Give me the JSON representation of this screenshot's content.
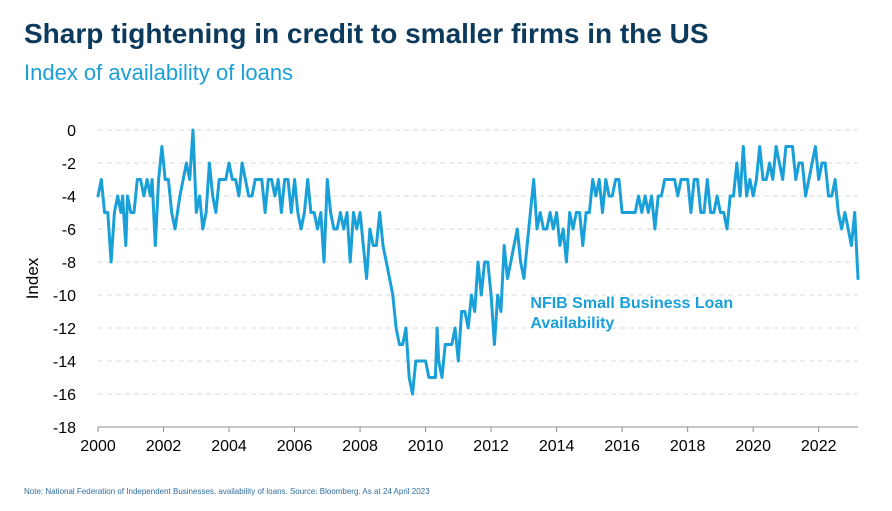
{
  "title": "Sharp tightening in credit to smaller firms in the US",
  "subtitle": "Index of availability of loans",
  "note": "Note: National Federation of Independent Businesses, availability of loans. Source: Bloomberg. As at 24 April 2023",
  "colors": {
    "title": "#0b3a5c",
    "accent": "#1aa0d8",
    "grid": "#d9d9d9"
  },
  "chart_data": {
    "type": "line",
    "ylabel": "Index",
    "ylim": [
      -18,
      0
    ],
    "yticks": [
      0,
      -2,
      -4,
      -6,
      -8,
      -10,
      -12,
      -14,
      -16,
      -18
    ],
    "xlim": [
      2000,
      2023.2
    ],
    "xticks": [
      2000,
      2002,
      2004,
      2006,
      2008,
      2010,
      2012,
      2014,
      2016,
      2018,
      2020,
      2022
    ],
    "grid": "horizontal dashed",
    "series": [
      {
        "name": "NFIB Small Business Loan Availability",
        "color": "#1aa0d8",
        "points": [
          [
            2000.0,
            -4
          ],
          [
            2000.1,
            -3
          ],
          [
            2000.2,
            -5
          ],
          [
            2000.3,
            -5
          ],
          [
            2000.4,
            -8
          ],
          [
            2000.5,
            -5
          ],
          [
            2000.6,
            -4
          ],
          [
            2000.7,
            -5
          ],
          [
            2000.75,
            -4
          ],
          [
            2000.85,
            -7
          ],
          [
            2000.9,
            -4
          ],
          [
            2001.0,
            -5
          ],
          [
            2001.1,
            -5
          ],
          [
            2001.2,
            -3
          ],
          [
            2001.3,
            -3
          ],
          [
            2001.4,
            -4
          ],
          [
            2001.5,
            -3
          ],
          [
            2001.6,
            -4
          ],
          [
            2001.65,
            -3
          ],
          [
            2001.75,
            -7
          ],
          [
            2001.85,
            -3
          ],
          [
            2001.95,
            -1
          ],
          [
            2002.05,
            -3
          ],
          [
            2002.15,
            -3
          ],
          [
            2002.25,
            -5
          ],
          [
            2002.35,
            -6
          ],
          [
            2002.5,
            -4
          ],
          [
            2002.7,
            -2
          ],
          [
            2002.8,
            -3
          ],
          [
            2002.9,
            0
          ],
          [
            2003.0,
            -5
          ],
          [
            2003.1,
            -4
          ],
          [
            2003.2,
            -6
          ],
          [
            2003.3,
            -5
          ],
          [
            2003.4,
            -2
          ],
          [
            2003.5,
            -4
          ],
          [
            2003.6,
            -5
          ],
          [
            2003.7,
            -3
          ],
          [
            2003.8,
            -3
          ],
          [
            2003.9,
            -3
          ],
          [
            2004.0,
            -2
          ],
          [
            2004.1,
            -3
          ],
          [
            2004.2,
            -3
          ],
          [
            2004.3,
            -4
          ],
          [
            2004.4,
            -2
          ],
          [
            2004.5,
            -3
          ],
          [
            2004.6,
            -4
          ],
          [
            2004.7,
            -4
          ],
          [
            2004.8,
            -3
          ],
          [
            2004.9,
            -3
          ],
          [
            2005.0,
            -3
          ],
          [
            2005.1,
            -5
          ],
          [
            2005.2,
            -3
          ],
          [
            2005.3,
            -3
          ],
          [
            2005.4,
            -4
          ],
          [
            2005.5,
            -3
          ],
          [
            2005.6,
            -5
          ],
          [
            2005.7,
            -3
          ],
          [
            2005.8,
            -3
          ],
          [
            2005.9,
            -5
          ],
          [
            2006.0,
            -3
          ],
          [
            2006.1,
            -5
          ],
          [
            2006.2,
            -6
          ],
          [
            2006.3,
            -5
          ],
          [
            2006.4,
            -3
          ],
          [
            2006.5,
            -5
          ],
          [
            2006.6,
            -5
          ],
          [
            2006.7,
            -6
          ],
          [
            2006.8,
            -5
          ],
          [
            2006.9,
            -8
          ],
          [
            2007.0,
            -3
          ],
          [
            2007.1,
            -5
          ],
          [
            2007.2,
            -6
          ],
          [
            2007.3,
            -6
          ],
          [
            2007.4,
            -5
          ],
          [
            2007.5,
            -6
          ],
          [
            2007.6,
            -5
          ],
          [
            2007.7,
            -8
          ],
          [
            2007.8,
            -5
          ],
          [
            2007.9,
            -6
          ],
          [
            2008.0,
            -5
          ],
          [
            2008.1,
            -7
          ],
          [
            2008.2,
            -9
          ],
          [
            2008.3,
            -6
          ],
          [
            2008.4,
            -7
          ],
          [
            2008.5,
            -7
          ],
          [
            2008.6,
            -5
          ],
          [
            2008.7,
            -7
          ],
          [
            2008.8,
            -8
          ],
          [
            2008.9,
            -9
          ],
          [
            2009.0,
            -10
          ],
          [
            2009.1,
            -12
          ],
          [
            2009.2,
            -13
          ],
          [
            2009.3,
            -13
          ],
          [
            2009.4,
            -12
          ],
          [
            2009.5,
            -15
          ],
          [
            2009.6,
            -16
          ],
          [
            2009.7,
            -14
          ],
          [
            2009.8,
            -14
          ],
          [
            2009.9,
            -14
          ],
          [
            2010.0,
            -14
          ],
          [
            2010.1,
            -15
          ],
          [
            2010.2,
            -15
          ],
          [
            2010.3,
            -15
          ],
          [
            2010.35,
            -12
          ],
          [
            2010.4,
            -14
          ],
          [
            2010.5,
            -15
          ],
          [
            2010.6,
            -13
          ],
          [
            2010.7,
            -13
          ],
          [
            2010.8,
            -13
          ],
          [
            2010.9,
            -12
          ],
          [
            2011.0,
            -14
          ],
          [
            2011.1,
            -11
          ],
          [
            2011.2,
            -11
          ],
          [
            2011.3,
            -12
          ],
          [
            2011.4,
            -10
          ],
          [
            2011.5,
            -11
          ],
          [
            2011.6,
            -8
          ],
          [
            2011.7,
            -10
          ],
          [
            2011.8,
            -8
          ],
          [
            2011.9,
            -8
          ],
          [
            2012.0,
            -10
          ],
          [
            2012.1,
            -13
          ],
          [
            2012.2,
            -10
          ],
          [
            2012.3,
            -11
          ],
          [
            2012.4,
            -7
          ],
          [
            2012.5,
            -9
          ],
          [
            2012.6,
            -8
          ],
          [
            2012.7,
            -7
          ],
          [
            2012.8,
            -6
          ],
          [
            2012.9,
            -8
          ],
          [
            2013.0,
            -9
          ],
          [
            2013.1,
            -7
          ],
          [
            2013.2,
            -5
          ],
          [
            2013.3,
            -3
          ],
          [
            2013.4,
            -6
          ],
          [
            2013.5,
            -5
          ],
          [
            2013.6,
            -6
          ],
          [
            2013.7,
            -6
          ],
          [
            2013.8,
            -5
          ],
          [
            2013.9,
            -6
          ],
          [
            2014.0,
            -5
          ],
          [
            2014.1,
            -7
          ],
          [
            2014.2,
            -6
          ],
          [
            2014.3,
            -8
          ],
          [
            2014.4,
            -5
          ],
          [
            2014.5,
            -6
          ],
          [
            2014.6,
            -5
          ],
          [
            2014.7,
            -5
          ],
          [
            2014.8,
            -7
          ],
          [
            2014.9,
            -5
          ],
          [
            2015.0,
            -5
          ],
          [
            2015.1,
            -3
          ],
          [
            2015.2,
            -4
          ],
          [
            2015.3,
            -3
          ],
          [
            2015.4,
            -5
          ],
          [
            2015.5,
            -3
          ],
          [
            2015.6,
            -4
          ],
          [
            2015.7,
            -4
          ],
          [
            2015.8,
            -3
          ],
          [
            2015.9,
            -3
          ],
          [
            2016.0,
            -5
          ],
          [
            2016.1,
            -5
          ],
          [
            2016.2,
            -5
          ],
          [
            2016.3,
            -5
          ],
          [
            2016.4,
            -5
          ],
          [
            2016.5,
            -4
          ],
          [
            2016.6,
            -5
          ],
          [
            2016.7,
            -4
          ],
          [
            2016.8,
            -5
          ],
          [
            2016.9,
            -4
          ],
          [
            2017.0,
            -6
          ],
          [
            2017.1,
            -4
          ],
          [
            2017.2,
            -4
          ],
          [
            2017.3,
            -3
          ],
          [
            2017.4,
            -3
          ],
          [
            2017.5,
            -3
          ],
          [
            2017.6,
            -3
          ],
          [
            2017.7,
            -4
          ],
          [
            2017.8,
            -3
          ],
          [
            2017.9,
            -3
          ],
          [
            2018.0,
            -3
          ],
          [
            2018.1,
            -5
          ],
          [
            2018.2,
            -3
          ],
          [
            2018.3,
            -3
          ],
          [
            2018.4,
            -5
          ],
          [
            2018.5,
            -5
          ],
          [
            2018.6,
            -3
          ],
          [
            2018.7,
            -5
          ],
          [
            2018.8,
            -5
          ],
          [
            2018.9,
            -4
          ],
          [
            2019.0,
            -5
          ],
          [
            2019.1,
            -5
          ],
          [
            2019.2,
            -6
          ],
          [
            2019.3,
            -4
          ],
          [
            2019.4,
            -4
          ],
          [
            2019.5,
            -2
          ],
          [
            2019.6,
            -4
          ],
          [
            2019.7,
            -1
          ],
          [
            2019.8,
            -4
          ],
          [
            2019.9,
            -3
          ],
          [
            2020.0,
            -4
          ],
          [
            2020.1,
            -3
          ],
          [
            2020.2,
            -1
          ],
          [
            2020.3,
            -3
          ],
          [
            2020.4,
            -3
          ],
          [
            2020.5,
            -2
          ],
          [
            2020.6,
            -3
          ],
          [
            2020.7,
            -1
          ],
          [
            2020.8,
            -2
          ],
          [
            2020.9,
            -3
          ],
          [
            2021.0,
            -1
          ],
          [
            2021.1,
            -1
          ],
          [
            2021.2,
            -1
          ],
          [
            2021.3,
            -3
          ],
          [
            2021.4,
            -2
          ],
          [
            2021.5,
            -2
          ],
          [
            2021.6,
            -4
          ],
          [
            2021.7,
            -3
          ],
          [
            2021.8,
            -2
          ],
          [
            2021.9,
            -1
          ],
          [
            2022.0,
            -3
          ],
          [
            2022.1,
            -2
          ],
          [
            2022.2,
            -2
          ],
          [
            2022.3,
            -4
          ],
          [
            2022.4,
            -4
          ],
          [
            2022.5,
            -3
          ],
          [
            2022.6,
            -5
          ],
          [
            2022.7,
            -6
          ],
          [
            2022.8,
            -5
          ],
          [
            2022.9,
            -6
          ],
          [
            2023.0,
            -7
          ],
          [
            2023.1,
            -5
          ],
          [
            2023.2,
            -9
          ]
        ]
      }
    ],
    "annotation": {
      "lines": [
        "NFIB Small Business Loan",
        "Availability"
      ],
      "anchor_x": 2013.2,
      "anchor_y": -10.8
    }
  }
}
